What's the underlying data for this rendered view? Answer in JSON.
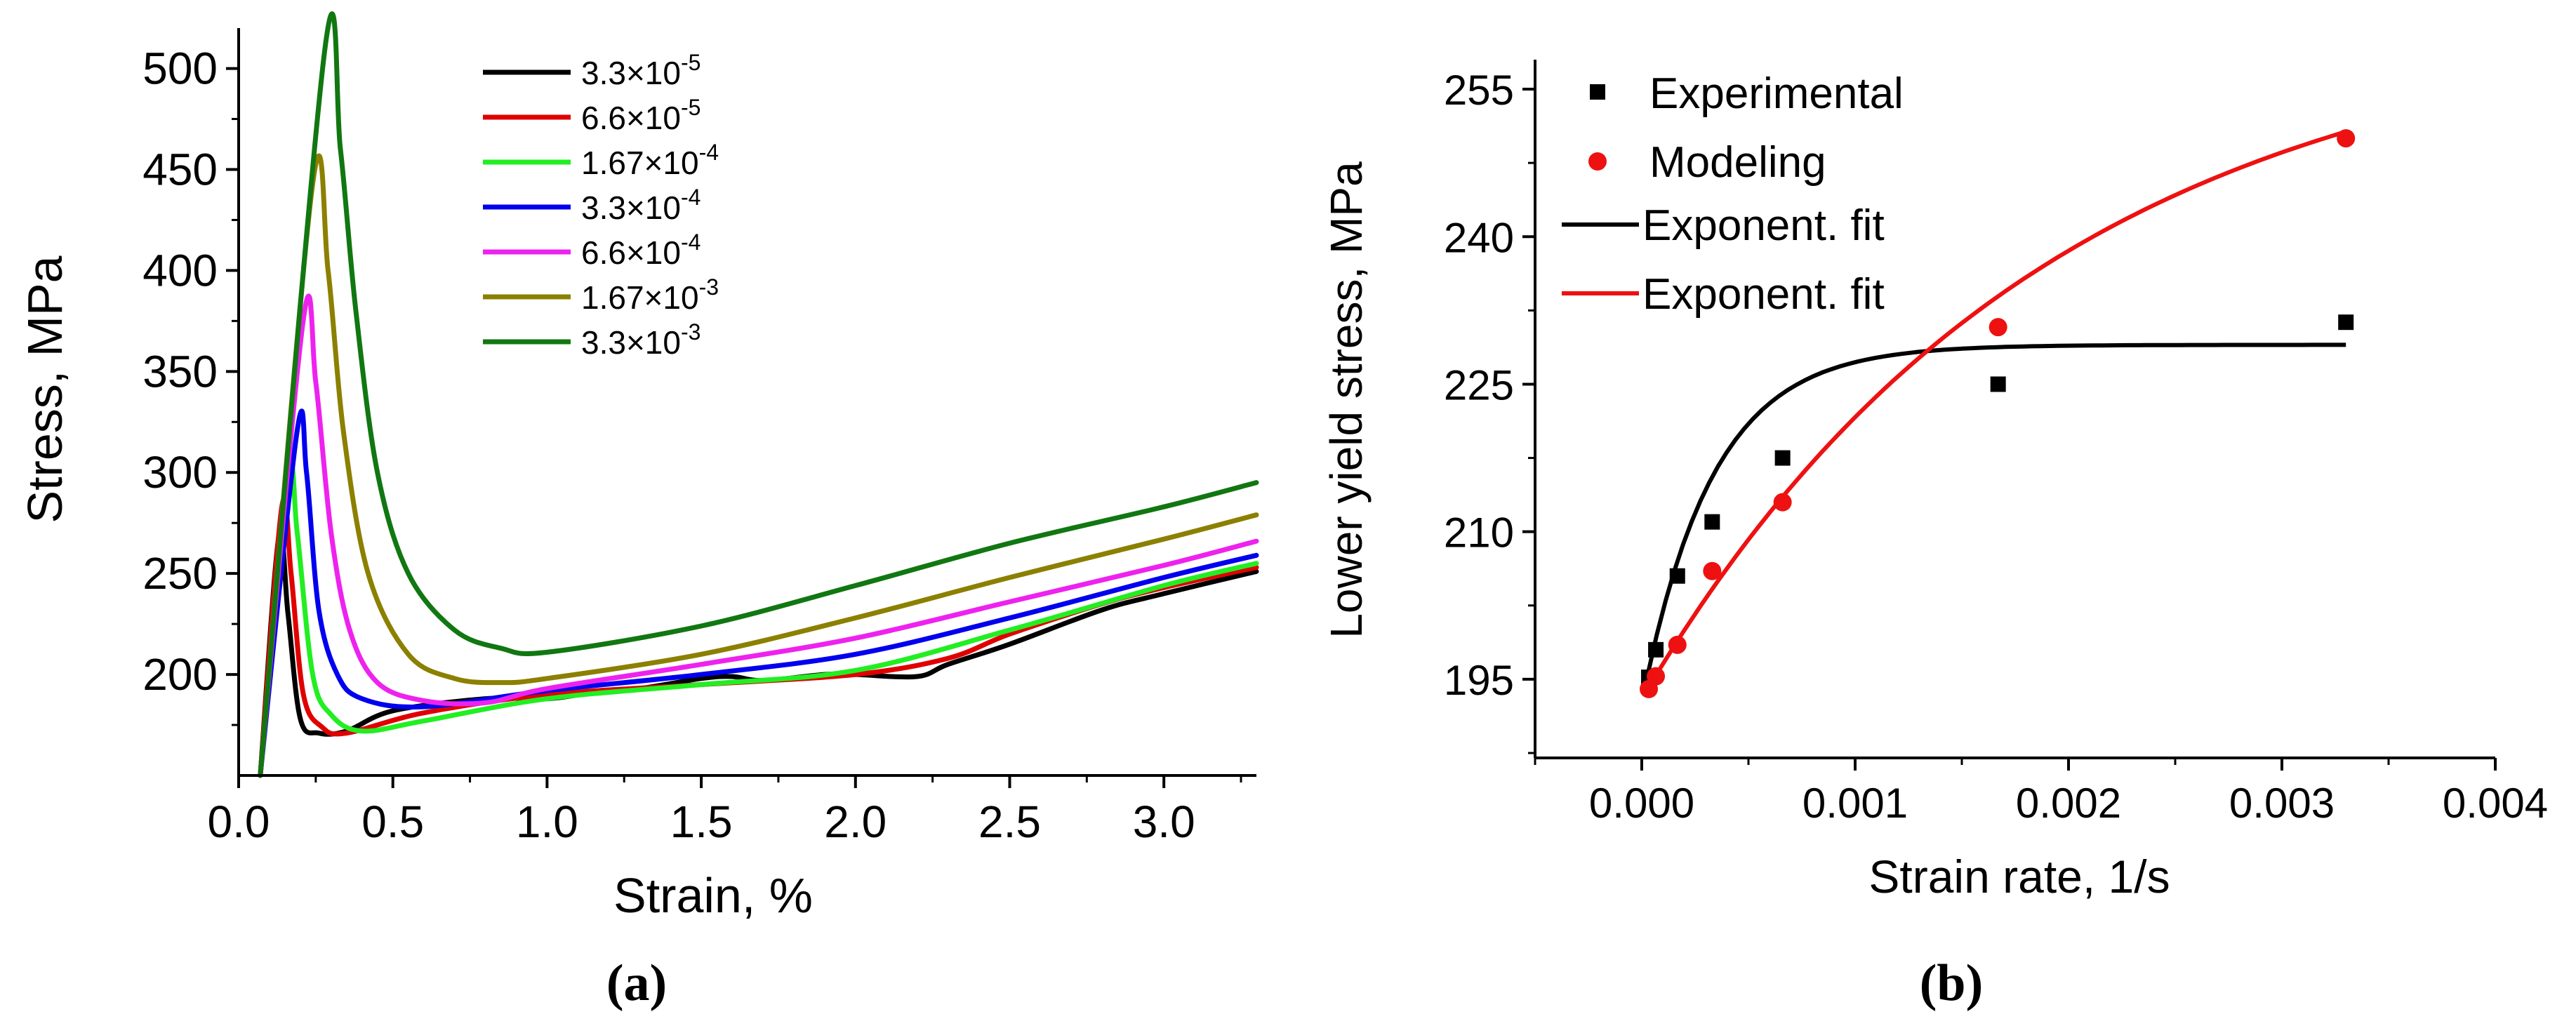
{
  "chart_data": [
    {
      "type": "line",
      "panel_label": "(a)",
      "xlabel": "Strain, %",
      "ylabel": "Stress, MPa",
      "xlim": [
        0,
        3.3
      ],
      "ylim": [
        150,
        520
      ],
      "xticks": [
        "0.0",
        "0.5",
        "1.0",
        "1.5",
        "2.0",
        "2.5",
        "3.0"
      ],
      "yticks": [
        "200",
        "250",
        "300",
        "350",
        "400",
        "450",
        "500"
      ],
      "legend_position": "top-center",
      "series": [
        {
          "name": "3.3×10-5",
          "label_base": "3.3×10",
          "label_exp": "-5",
          "color": "#000000",
          "x": [
            0.07,
            0.13,
            0.16,
            0.2,
            0.26,
            0.35,
            0.5,
            0.8,
            1.0,
            1.15,
            1.3,
            1.5,
            1.6,
            1.7,
            1.9,
            2.0,
            2.2,
            2.3,
            2.5,
            2.8,
            3.0,
            3.3
          ],
          "y": [
            150,
            268,
            230,
            178,
            171,
            172,
            182,
            188,
            188,
            191,
            193,
            198,
            199,
            197,
            200,
            200,
            199,
            205,
            215,
            232,
            240,
            251
          ]
        },
        {
          "name": "6.6×10-5",
          "label_base": "6.6×10",
          "label_exp": "-5",
          "color": "#e00000",
          "x": [
            0.07,
            0.14,
            0.17,
            0.21,
            0.27,
            0.35,
            0.6,
            1.0,
            1.5,
            2.0,
            2.3,
            2.5,
            2.8,
            3.0,
            3.3
          ],
          "y": [
            150,
            283,
            250,
            190,
            174,
            171,
            181,
            190,
            195,
            200,
            208,
            220,
            235,
            243,
            253
          ]
        },
        {
          "name": "1.67×10-4",
          "label_base": "1.67×10",
          "label_exp": "-4",
          "color": "#22ee22",
          "x": [
            0.07,
            0.16,
            0.19,
            0.24,
            0.3,
            0.4,
            0.6,
            1.0,
            1.5,
            2.0,
            2.5,
            3.0,
            3.3
          ],
          "y": [
            150,
            298,
            270,
            200,
            180,
            172,
            177,
            188,
            195,
            202,
            222,
            244,
            255
          ]
        },
        {
          "name": "3.3×10-4",
          "label_base": "3.3×10",
          "label_exp": "-4",
          "color": "#0000ee",
          "x": [
            0.07,
            0.19,
            0.22,
            0.26,
            0.32,
            0.4,
            0.6,
            1.0,
            1.5,
            2.0,
            2.5,
            3.0,
            3.3
          ],
          "y": [
            150,
            321,
            300,
            232,
            200,
            188,
            184,
            192,
            200,
            210,
            228,
            248,
            259
          ]
        },
        {
          "name": "6.6×10-4",
          "label_base": "6.6×10",
          "label_exp": "-4",
          "color": "#ee22ee",
          "x": [
            0.07,
            0.21,
            0.25,
            0.3,
            0.36,
            0.45,
            0.6,
            0.8,
            1.0,
            1.5,
            2.0,
            2.5,
            3.0,
            3.3
          ],
          "y": [
            150,
            376,
            345,
            270,
            222,
            196,
            187,
            186,
            193,
            205,
            218,
            236,
            254,
            266
          ]
        },
        {
          "name": "1.67×10-3",
          "label_base": "1.67×10",
          "label_exp": "-3",
          "color": "#8b8000",
          "x": [
            0.07,
            0.24,
            0.29,
            0.34,
            0.42,
            0.55,
            0.7,
            0.85,
            1.0,
            1.5,
            2.0,
            2.5,
            3.0,
            3.3
          ],
          "y": [
            150,
            443,
            400,
            320,
            250,
            210,
            198,
            196,
            198,
            210,
            228,
            248,
            267,
            279
          ]
        },
        {
          "name": "3.3×10-3",
          "label_base": "3.3×10",
          "label_exp": "-3",
          "color": "#117711",
          "x": [
            0.07,
            0.28,
            0.33,
            0.38,
            0.45,
            0.55,
            0.7,
            0.85,
            1.0,
            1.5,
            2.0,
            2.5,
            3.0,
            3.3
          ],
          "y": [
            150,
            510,
            460,
            380,
            300,
            250,
            222,
            213,
            211,
            224,
            244,
            265,
            283,
            295
          ]
        }
      ]
    },
    {
      "type": "scatter",
      "panel_label": "(b)",
      "xlabel": "Strain rate, 1/s",
      "ylabel": "Lower yield stress, MPa",
      "xlim": [
        -0.0005,
        0.004
      ],
      "ylim": [
        187,
        258
      ],
      "xticks": [
        "0.000",
        "0.001",
        "0.002",
        "0.003",
        "0.004"
      ],
      "yticks": [
        "195",
        "210",
        "225",
        "240",
        "255"
      ],
      "legend_position": "top-left",
      "series": [
        {
          "name": "Experimental",
          "marker": "square",
          "color": "#000000",
          "x": [
            3.3e-05,
            6.6e-05,
            0.000167,
            0.00033,
            0.00066,
            0.00167,
            0.0033
          ],
          "y": [
            195.2,
            198.0,
            205.5,
            211.0,
            217.5,
            225.0,
            231.3
          ]
        },
        {
          "name": "Modeling",
          "marker": "circle",
          "color": "#ee1111",
          "x": [
            3.3e-05,
            6.6e-05,
            0.000167,
            0.00033,
            0.00066,
            0.00167,
            0.0033
          ],
          "y": [
            194.0,
            195.3,
            198.5,
            206.0,
            213.0,
            230.8,
            250.0
          ]
        },
        {
          "name": "Exponent. fit",
          "line": true,
          "color": "#000000",
          "fit": {
            "y0": 229.0,
            "A": -36.5,
            "t": 0.00033,
            "x_start": 3e-05,
            "x_end": 0.0033
          }
        },
        {
          "name": "Exponent. fit",
          "line": true,
          "color": "#ee1111",
          "fit": {
            "y0": 263.0,
            "A": -70.0,
            "t": 0.0019,
            "x_start": 3e-05,
            "x_end": 0.0033
          }
        }
      ]
    }
  ]
}
